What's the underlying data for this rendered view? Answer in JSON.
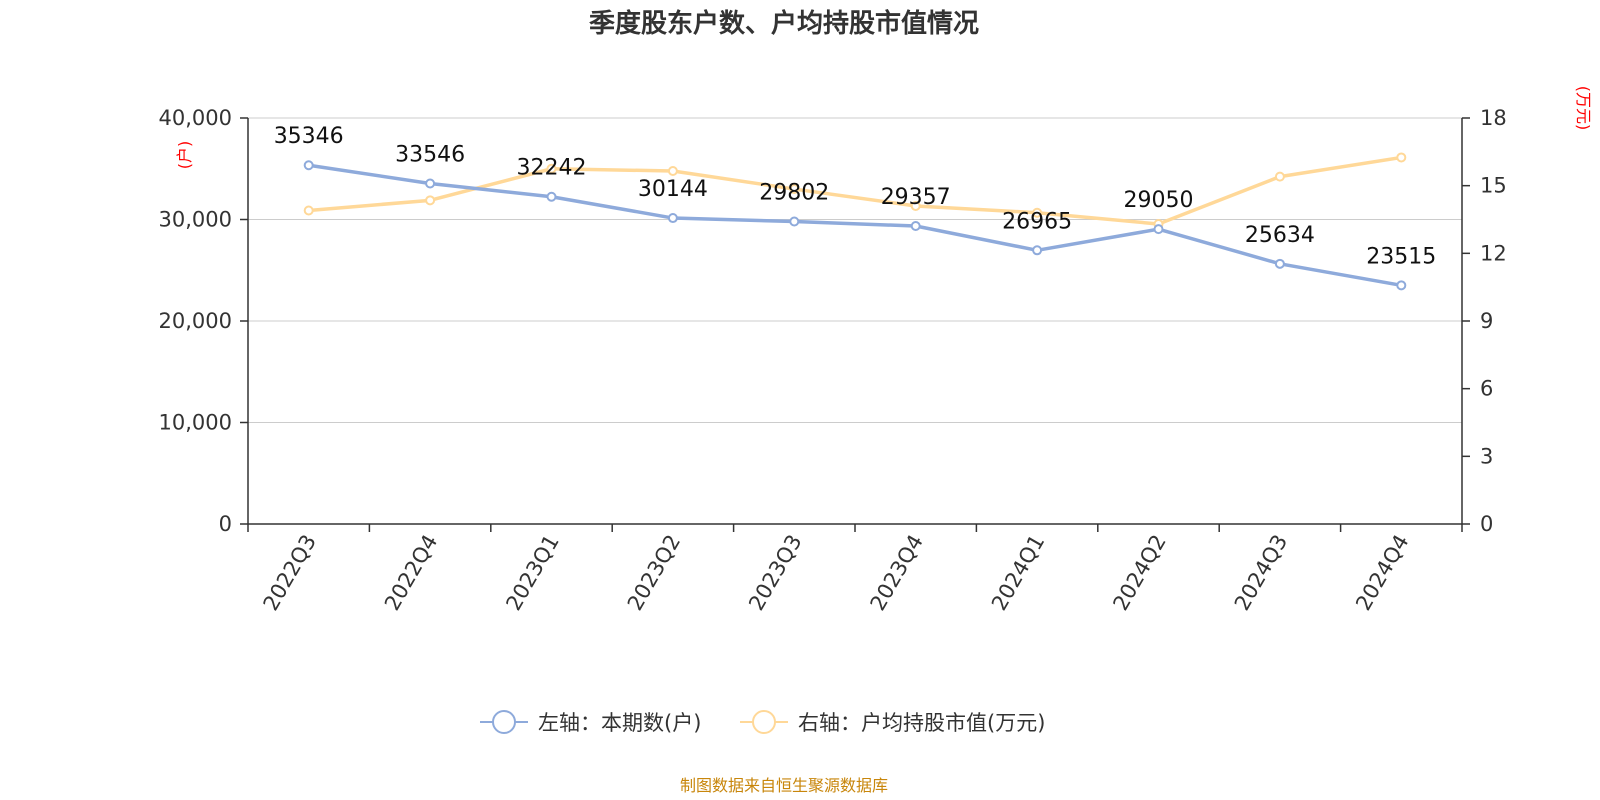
{
  "chart_data": {
    "type": "line",
    "title": "季度股东户数、户均持股市值情况",
    "categories": [
      "2022Q3",
      "2022Q4",
      "2023Q1",
      "2023Q2",
      "2023Q3",
      "2023Q4",
      "2024Q1",
      "2024Q2",
      "2024Q3",
      "2024Q4"
    ],
    "y_left": {
      "label": "(户)",
      "min": 0,
      "max": 40000,
      "ticks": [
        "0",
        "10,000",
        "20,000",
        "30,000",
        "40,000"
      ],
      "tick_values": [
        0,
        10000,
        20000,
        30000,
        40000
      ]
    },
    "y_right": {
      "label": "(万元)",
      "min": 0,
      "max": 18,
      "ticks": [
        "0",
        "3",
        "6",
        "9",
        "12",
        "15",
        "18"
      ],
      "tick_values": [
        0,
        3,
        6,
        9,
        12,
        15,
        18
      ]
    },
    "grid": true,
    "legend_position": "bottom",
    "series": [
      {
        "name": "左轴：本期数(户)",
        "axis": "left",
        "color": "#8eaadb",
        "values": [
          35346,
          33546,
          32242,
          30144,
          29802,
          29357,
          26965,
          29050,
          25634,
          23515
        ],
        "labels": [
          "35346",
          "33546",
          "32242",
          "30144",
          "29802",
          "29357",
          "26965",
          "29050",
          "25634",
          "23515"
        ]
      },
      {
        "name": "右轴：户均持股市值(万元)",
        "axis": "right",
        "color": "#ffd898",
        "values": [
          13.9,
          14.35,
          15.75,
          15.65,
          14.85,
          14.1,
          13.8,
          13.3,
          15.4,
          16.25
        ]
      }
    ],
    "source": "制图数据来自恒生聚源数据库"
  }
}
